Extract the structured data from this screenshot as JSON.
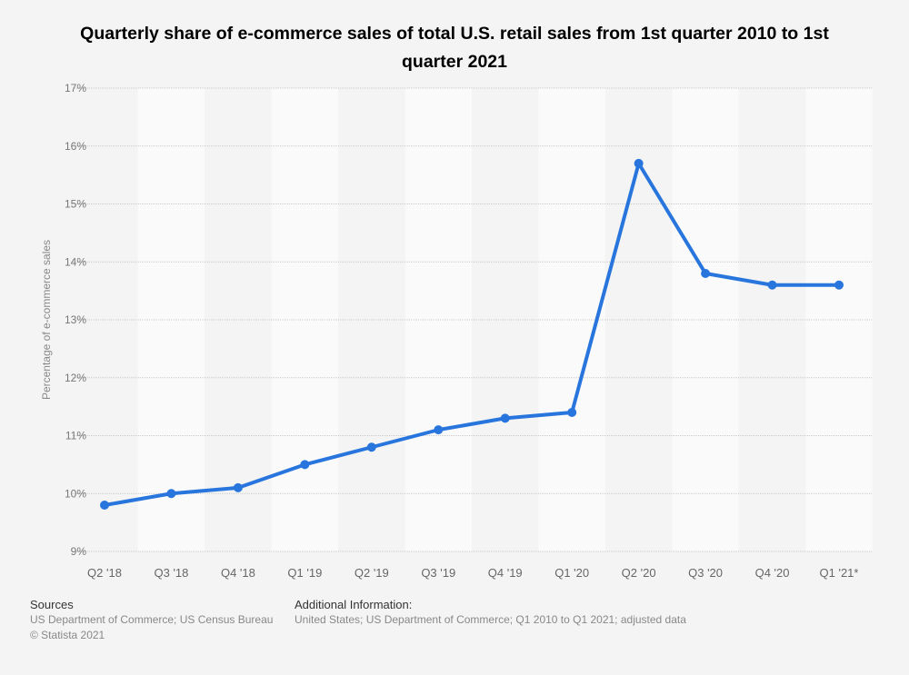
{
  "chart_data": {
    "type": "line",
    "title": "Quarterly share of e-commerce sales of total U.S. retail sales from 1st quarter 2010 to 1st quarter 2021",
    "xlabel": "",
    "ylabel": "Percentage of e-commerce sales",
    "categories": [
      "Q2 '18",
      "Q3 '18",
      "Q4 '18",
      "Q1 '19",
      "Q2 '19",
      "Q3 '19",
      "Q4 '19",
      "Q1 '20",
      "Q2 '20",
      "Q3 '20",
      "Q4 '20",
      "Q1 '21*"
    ],
    "values": [
      9.8,
      10.0,
      10.1,
      10.5,
      10.8,
      11.1,
      11.3,
      11.4,
      15.7,
      13.8,
      13.6,
      13.6
    ],
    "ylim": [
      9,
      17
    ],
    "yticks": [
      "9%",
      "10%",
      "11%",
      "12%",
      "13%",
      "14%",
      "15%",
      "16%",
      "17%"
    ],
    "grid": true,
    "line_color": "#2876dd"
  },
  "footer": {
    "sources_label": "Sources",
    "sources_text": "US Department of Commerce; US Census Bureau",
    "copyright": "© Statista 2021",
    "additional_label": "Additional Information:",
    "additional_text": "United States; US Department of Commerce; Q1 2010 to Q1 2021; adjusted data"
  }
}
